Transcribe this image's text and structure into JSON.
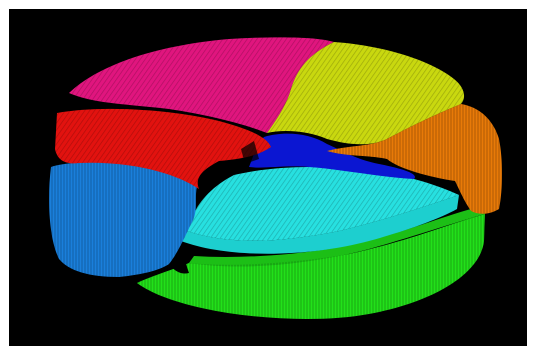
{
  "scene": {
    "background_color": "#000000",
    "frame_color": "#ffffff",
    "texture": "voxel-stripes",
    "regions": [
      {
        "name": "magenta",
        "color": "#e0157e"
      },
      {
        "name": "yellow",
        "color": "#c9d80f"
      },
      {
        "name": "red",
        "color": "#e2120f"
      },
      {
        "name": "orange",
        "color": "#e87a08"
      },
      {
        "name": "blue",
        "color": "#0b16d2"
      },
      {
        "name": "azure",
        "color": "#1a7fdb"
      },
      {
        "name": "cyan",
        "color": "#1dcfcf"
      },
      {
        "name": "green",
        "color": "#22e01a"
      }
    ]
  }
}
